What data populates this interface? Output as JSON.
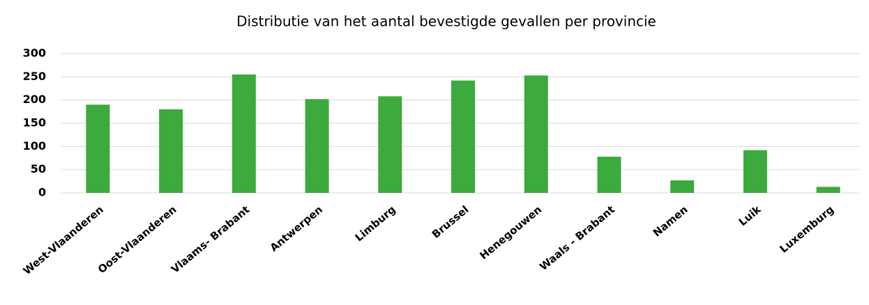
{
  "chart_data": {
    "type": "bar",
    "title": "Distributie van het aantal bevestigde gevallen per provincie",
    "categories": [
      "West-Vlaanderen",
      "Oost-Vlaanderen",
      "Vlaams- Brabant",
      "Antwerpen",
      "Limburg",
      "Brussel",
      "Henegouwen",
      "Waals - Brabant",
      "Namen",
      "Luik",
      "Luxemburg"
    ],
    "values": [
      190,
      180,
      255,
      202,
      208,
      242,
      253,
      78,
      27,
      92,
      13
    ],
    "color": "#3caa3c",
    "ylim": [
      0,
      300
    ],
    "yticks": [
      0,
      50,
      100,
      150,
      200,
      250,
      300
    ],
    "grid": true
  }
}
